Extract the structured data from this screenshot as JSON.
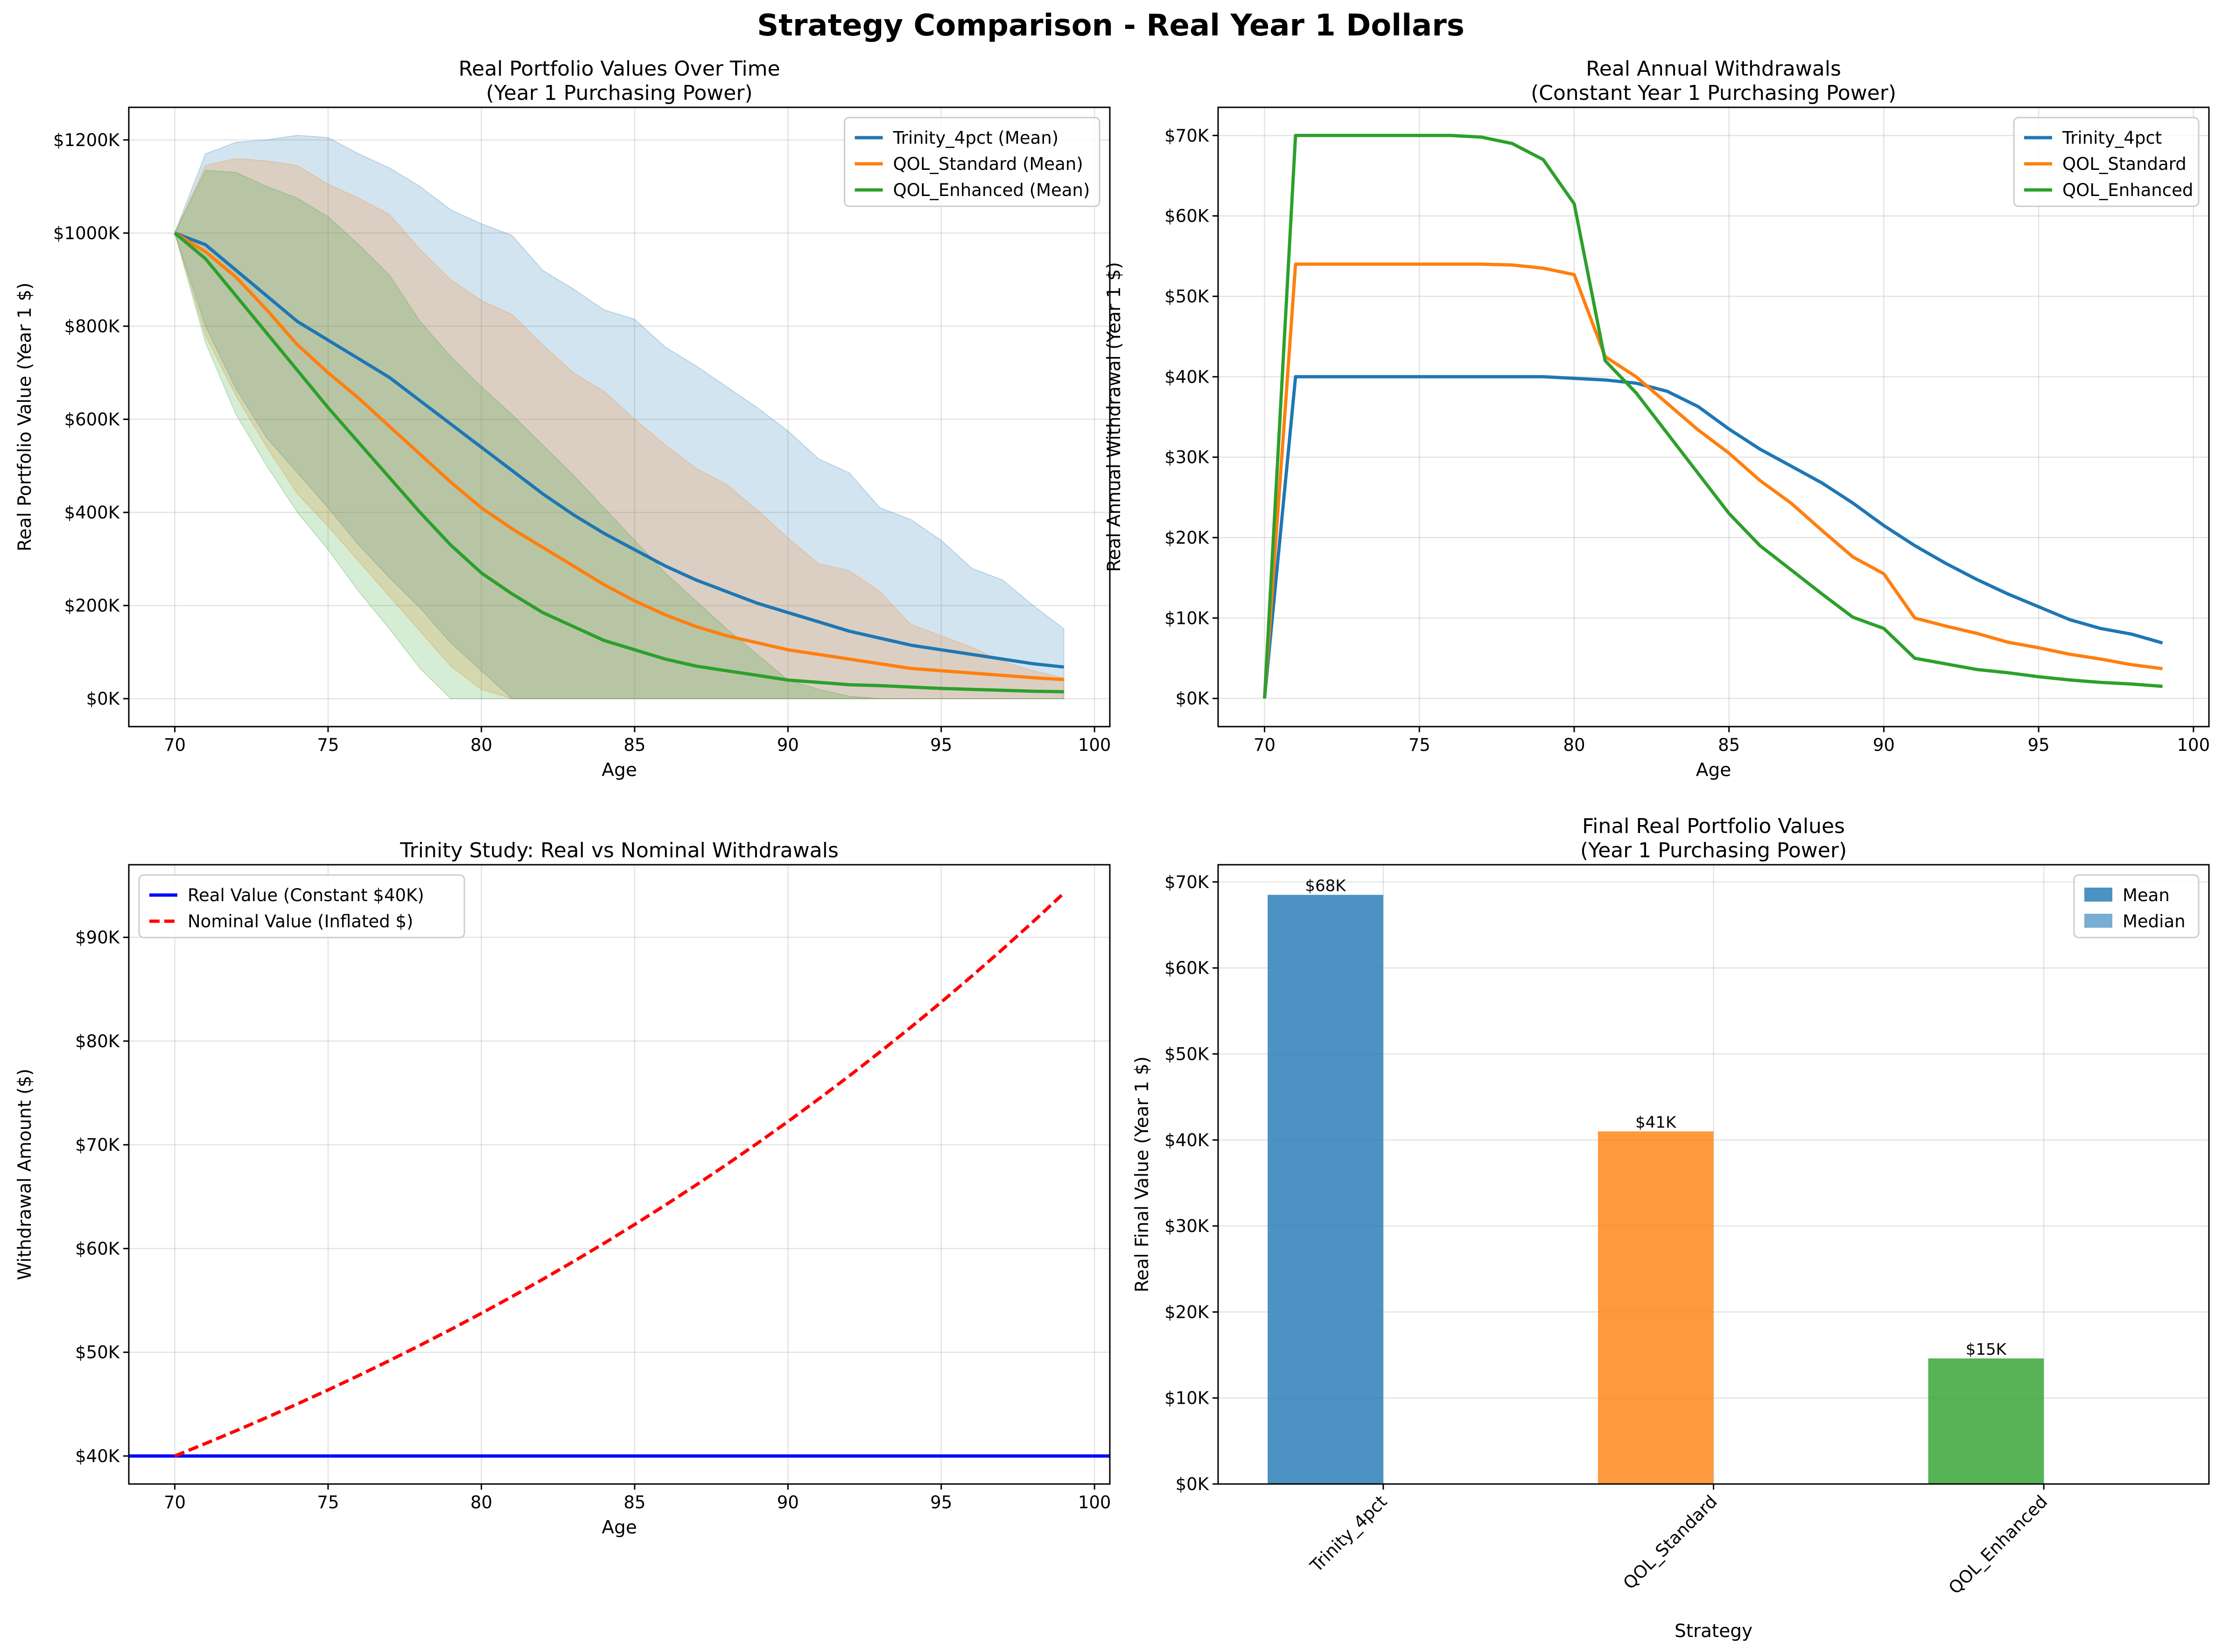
{
  "suptitle": "Strategy Comparison - Real Year 1 Dollars",
  "colors": {
    "trinity": "#1f77b4",
    "qol_standard": "#ff7f0e",
    "qol_enhanced": "#2ca02c",
    "real": "#0000ff",
    "nominal": "#ff0000"
  },
  "chart_data": [
    {
      "id": "portfolio",
      "type": "line",
      "title": "Real Portfolio Values Over Time\n(Year 1 Purchasing Power)",
      "xlabel": "Age",
      "ylabel": "Real Portfolio Value (Year 1 $)",
      "xlim": [
        68.5,
        100.5
      ],
      "ylim": [
        -60000,
        1270000
      ],
      "xticks": [
        70,
        75,
        80,
        85,
        90,
        95,
        100
      ],
      "xtick_labels": [
        "70",
        "75",
        "80",
        "85",
        "90",
        "95",
        "100"
      ],
      "yticks": [
        0,
        200000,
        400000,
        600000,
        800000,
        1000000,
        1200000
      ],
      "ytick_labels": [
        "$0K",
        "$200K",
        "$400K",
        "$600K",
        "$800K",
        "$1000K",
        "$1200K"
      ],
      "grid": true,
      "legend_position": "upper right",
      "x": [
        70,
        71,
        72,
        73,
        74,
        75,
        76,
        77,
        78,
        79,
        80,
        81,
        82,
        83,
        84,
        85,
        86,
        87,
        88,
        89,
        90,
        91,
        92,
        93,
        94,
        95,
        96,
        97,
        98,
        99
      ],
      "series": [
        {
          "name": "Trinity_4pct (Mean)",
          "color": "#1f77b4",
          "values": [
            1000000,
            975000,
            920000,
            865000,
            810000,
            770000,
            730000,
            690000,
            640000,
            590000,
            540000,
            490000,
            440000,
            395000,
            355000,
            320000,
            285000,
            255000,
            230000,
            205000,
            185000,
            165000,
            145000,
            130000,
            115000,
            105000,
            95000,
            85000,
            75000,
            68000
          ],
          "band_upper": [
            1000000,
            1170000,
            1195000,
            1200000,
            1210000,
            1205000,
            1170000,
            1140000,
            1100000,
            1050000,
            1020000,
            995000,
            920000,
            880000,
            835000,
            815000,
            755000,
            715000,
            670000,
            625000,
            575000,
            515000,
            485000,
            410000,
            385000,
            340000,
            280000,
            255000,
            200000,
            150000
          ],
          "band_lower": [
            1000000,
            800000,
            665000,
            560000,
            485000,
            410000,
            330000,
            260000,
            195000,
            120000,
            60000,
            0,
            0,
            0,
            0,
            0,
            0,
            0,
            0,
            0,
            0,
            0,
            0,
            0,
            0,
            0,
            0,
            0,
            0,
            0
          ]
        },
        {
          "name": "QOL_Standard (Mean)",
          "color": "#ff7f0e",
          "values": [
            1000000,
            960000,
            905000,
            835000,
            760000,
            700000,
            645000,
            585000,
            525000,
            465000,
            410000,
            365000,
            325000,
            285000,
            245000,
            210000,
            180000,
            155000,
            135000,
            120000,
            105000,
            95000,
            85000,
            75000,
            65000,
            60000,
            55000,
            50000,
            45000,
            41000
          ],
          "band_upper": [
            1000000,
            1145000,
            1160000,
            1155000,
            1145000,
            1105000,
            1075000,
            1040000,
            965000,
            900000,
            855000,
            825000,
            760000,
            700000,
            660000,
            600000,
            545000,
            495000,
            460000,
            405000,
            345000,
            290000,
            275000,
            230000,
            160000,
            135000,
            110000,
            80000,
            60000,
            45000
          ],
          "band_lower": [
            1000000,
            780000,
            650000,
            540000,
            440000,
            370000,
            295000,
            220000,
            145000,
            70000,
            20000,
            0,
            0,
            0,
            0,
            0,
            0,
            0,
            0,
            0,
            0,
            0,
            0,
            0,
            0,
            0,
            0,
            0,
            0,
            0
          ]
        },
        {
          "name": "QOL_Enhanced (Mean)",
          "color": "#2ca02c",
          "values": [
            1000000,
            945000,
            865000,
            785000,
            705000,
            625000,
            550000,
            475000,
            400000,
            330000,
            270000,
            225000,
            185000,
            155000,
            125000,
            105000,
            85000,
            70000,
            60000,
            50000,
            40000,
            35000,
            30000,
            28000,
            25000,
            22000,
            20000,
            18000,
            16000,
            15000
          ],
          "band_upper": [
            1000000,
            1135000,
            1130000,
            1100000,
            1075000,
            1035000,
            975000,
            910000,
            810000,
            735000,
            670000,
            610000,
            545000,
            480000,
            410000,
            340000,
            270000,
            210000,
            150000,
            95000,
            40000,
            20000,
            5000,
            0,
            0,
            0,
            0,
            0,
            0,
            0
          ],
          "band_lower": [
            1000000,
            765000,
            610000,
            500000,
            400000,
            320000,
            230000,
            150000,
            65000,
            0,
            0,
            0,
            0,
            0,
            0,
            0,
            0,
            0,
            0,
            0,
            0,
            0,
            0,
            0,
            0,
            0,
            0,
            0,
            0,
            0
          ]
        }
      ]
    },
    {
      "id": "withdrawals",
      "type": "line",
      "title": "Real Annual Withdrawals\n(Constant Year 1 Purchasing Power)",
      "xlabel": "Age",
      "ylabel": "Real Annual Withdrawal (Year 1 $)",
      "xlim": [
        68.5,
        100.5
      ],
      "ylim": [
        -3500,
        73500
      ],
      "xticks": [
        70,
        75,
        80,
        85,
        90,
        95,
        100
      ],
      "xtick_labels": [
        "70",
        "75",
        "80",
        "85",
        "90",
        "95",
        "100"
      ],
      "yticks": [
        0,
        10000,
        20000,
        30000,
        40000,
        50000,
        60000,
        70000
      ],
      "ytick_labels": [
        "$0K",
        "$10K",
        "$20K",
        "$30K",
        "$40K",
        "$50K",
        "$60K",
        "$70K"
      ],
      "grid": true,
      "legend_position": "upper right",
      "x": [
        70,
        71,
        72,
        73,
        74,
        75,
        76,
        77,
        78,
        79,
        80,
        81,
        82,
        83,
        84,
        85,
        86,
        87,
        88,
        89,
        90,
        91,
        92,
        93,
        94,
        95,
        96,
        97,
        98,
        99
      ],
      "series": [
        {
          "name": "Trinity_4pct",
          "color": "#1f77b4",
          "values": [
            0,
            40000,
            40000,
            40000,
            40000,
            40000,
            40000,
            40000,
            40000,
            40000,
            39800,
            39600,
            39200,
            38200,
            36300,
            33500,
            31000,
            28900,
            26800,
            24300,
            21500,
            19000,
            16800,
            14800,
            13000,
            11400,
            9800,
            8700,
            8000,
            6900
          ]
        },
        {
          "name": "QOL_Standard",
          "color": "#ff7f0e",
          "values": [
            0,
            54000,
            54000,
            54000,
            54000,
            54000,
            54000,
            54000,
            53900,
            53500,
            52700,
            42500,
            40000,
            36700,
            33400,
            30500,
            27100,
            24300,
            20900,
            17600,
            15500,
            10000,
            9000,
            8100,
            7000,
            6300,
            5500,
            4900,
            4200,
            3700
          ]
        },
        {
          "name": "QOL_Enhanced",
          "color": "#2ca02c",
          "values": [
            0,
            70000,
            70000,
            70000,
            70000,
            70000,
            70000,
            69800,
            69000,
            67000,
            61500,
            42000,
            38000,
            33000,
            28000,
            23000,
            19000,
            16000,
            13000,
            10100,
            8700,
            5000,
            4300,
            3600,
            3200,
            2700,
            2300,
            2000,
            1800,
            1500
          ]
        }
      ]
    },
    {
      "id": "trinity_real_nominal",
      "type": "line",
      "title": "Trinity Study: Real vs Nominal Withdrawals",
      "xlabel": "Age",
      "ylabel": "Withdrawal Amount ($)",
      "xlim": [
        68.5,
        100.5
      ],
      "ylim": [
        37300,
        97000
      ],
      "xticks": [
        70,
        75,
        80,
        85,
        90,
        95,
        100
      ],
      "xtick_labels": [
        "70",
        "75",
        "80",
        "85",
        "90",
        "95",
        "100"
      ],
      "yticks": [
        40000,
        50000,
        60000,
        70000,
        80000,
        90000
      ],
      "ytick_labels": [
        "$40K",
        "$50K",
        "$60K",
        "$70K",
        "$80K",
        "$90K"
      ],
      "grid": true,
      "legend_position": "upper left",
      "real_line": {
        "name": "Real Value (Constant $40K)",
        "color": "#0000ff",
        "value": 40000
      },
      "nominal_line": {
        "name": "Nominal Value (Inflated $)",
        "color": "#ff0000",
        "start_age": 70,
        "end_age": 99,
        "start_value": 40000,
        "annual_inflation": 0.03
      }
    },
    {
      "id": "final_values",
      "type": "bar",
      "title": "Final Real Portfolio Values\n(Year 1 Purchasing Power)",
      "xlabel": "Strategy",
      "ylabel": "Real Final Value (Year 1 $)",
      "ylim": [
        0,
        72000
      ],
      "yticks": [
        0,
        10000,
        20000,
        30000,
        40000,
        50000,
        60000,
        70000
      ],
      "ytick_labels": [
        "$0K",
        "$10K",
        "$20K",
        "$30K",
        "$40K",
        "$50K",
        "$60K",
        "$70K"
      ],
      "grid": true,
      "legend_position": "upper right",
      "categories": [
        "Trinity_4pct",
        "QOL_Standard",
        "QOL_Enhanced"
      ],
      "colors": [
        "#1f77b4",
        "#ff7f0e",
        "#2ca02c"
      ],
      "series": [
        {
          "name": "Mean",
          "values": [
            68500,
            41000,
            14600
          ],
          "labels": [
            "$68K",
            "$41K",
            "$15K"
          ],
          "alpha": 0.8
        },
        {
          "name": "Median",
          "values": [
            0,
            0,
            0
          ],
          "alpha": 0.6
        }
      ],
      "legend_entries": [
        "Mean",
        "Median"
      ]
    }
  ]
}
